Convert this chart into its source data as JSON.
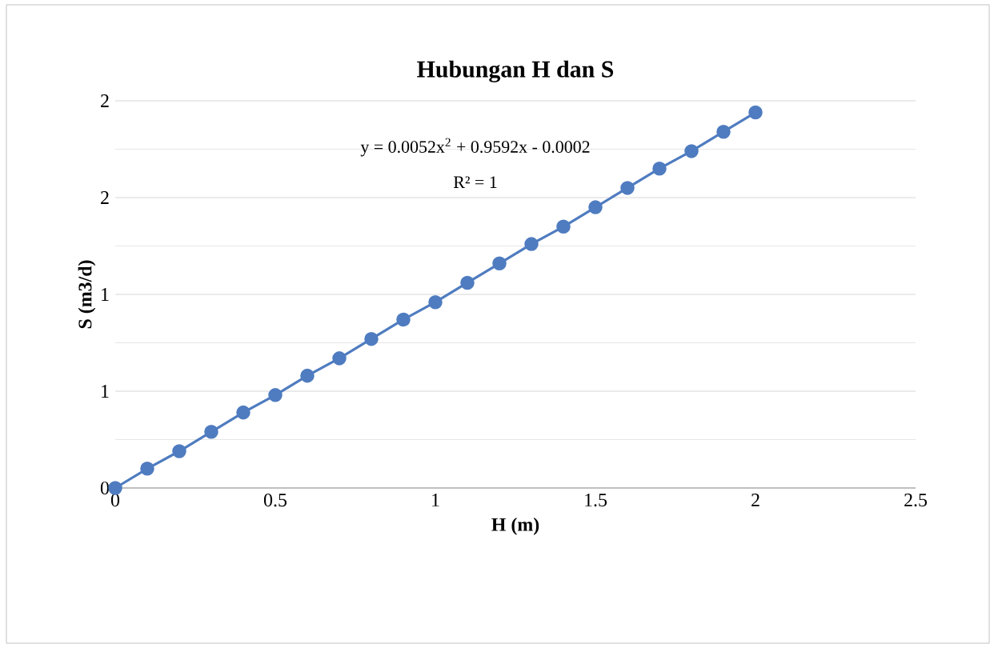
{
  "chart_data": {
    "type": "line",
    "title": "Hubungan H dan S",
    "xlabel": "H (m)",
    "ylabel": "S (m3/d)",
    "x": [
      0,
      0.1,
      0.2,
      0.3,
      0.4,
      0.5,
      0.6,
      0.7,
      0.8,
      0.9,
      1.0,
      1.1,
      1.2,
      1.3,
      1.4,
      1.5,
      1.6,
      1.7,
      1.8,
      1.9,
      2.0
    ],
    "series": [
      {
        "color": "#4f7cc0",
        "values": [
          0,
          0.1,
          0.19,
          0.29,
          0.39,
          0.48,
          0.58,
          0.67,
          0.77,
          0.87,
          0.96,
          1.06,
          1.16,
          1.26,
          1.35,
          1.45,
          1.55,
          1.65,
          1.74,
          1.84,
          1.94
        ]
      }
    ],
    "xlim": [
      0,
      2.5
    ],
    "xticks": [
      0,
      0.5,
      1,
      1.5,
      2,
      2.5
    ],
    "ylim": [
      0,
      2
    ],
    "yticks": [
      0,
      {
        "value": 0.5,
        "label": "1"
      },
      {
        "value": 1,
        "label": "1"
      },
      {
        "value": 1.5,
        "label": "2"
      },
      2
    ],
    "grid": "y",
    "marker": "circle",
    "line_style": "solid",
    "annotations": [
      "y = 0.0052x$^{2}$ + 0.9592x - 0.0002",
      "R² = 1"
    ]
  }
}
